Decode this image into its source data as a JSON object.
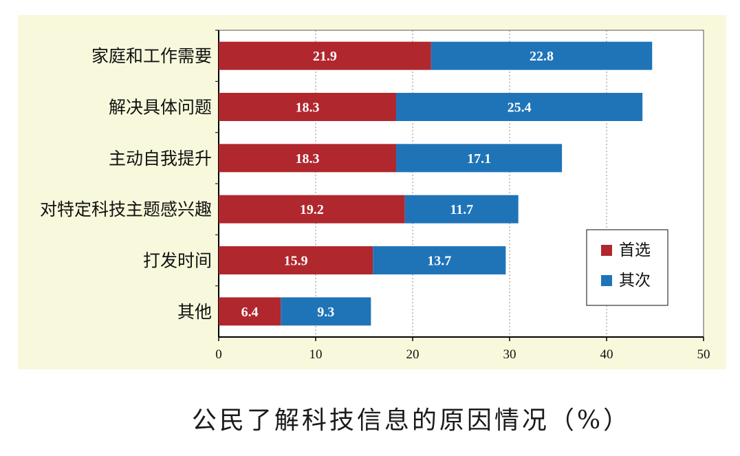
{
  "caption": "公民了解科技信息的原因情况（%）",
  "colors": {
    "background": "#f8f8dc",
    "series_primary": "#b0272e",
    "series_secondary": "#1f74b8"
  },
  "chart_data": {
    "type": "bar",
    "orientation": "horizontal",
    "stacked": true,
    "categories": [
      "家庭和工作需要",
      "解决具体问题",
      "主动自我提升",
      "对特定科技主题感兴趣",
      "打发时间",
      "其他"
    ],
    "series": [
      {
        "name": "首选",
        "color": "#b0272e",
        "values": [
          21.9,
          18.3,
          18.3,
          19.2,
          15.9,
          6.4
        ]
      },
      {
        "name": "其次",
        "color": "#1f74b8",
        "values": [
          22.8,
          25.4,
          17.1,
          11.7,
          13.7,
          9.3
        ]
      }
    ],
    "xlim": [
      0,
      50
    ],
    "xticks": [
      0,
      10,
      20,
      30,
      40,
      50
    ],
    "grid": "vertical dotted",
    "legend_position": "bottom-right",
    "data_labels": true
  }
}
